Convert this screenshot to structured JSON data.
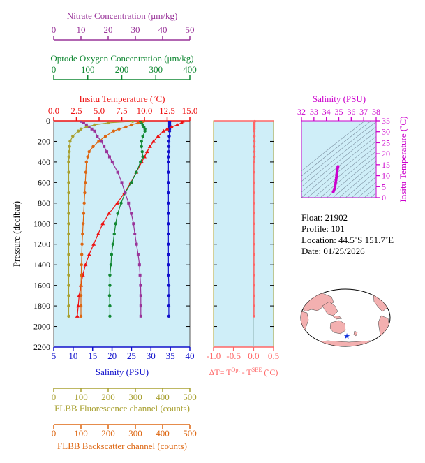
{
  "colors": {
    "nitrate": "#993399",
    "oxygen": "#118833",
    "temperature": "#ee1111",
    "salinity": "#1111cc",
    "fluorescence": "#a8a030",
    "backscatter": "#dd6611",
    "deltaT": "#ff6666",
    "salinity_ts": "#cc00cc",
    "panel_bg": "#cfeef8"
  },
  "float_info": {
    "float": "Float:  21902",
    "profile": "Profile:  101",
    "location": "Location:  44.5˚S  151.7˚E",
    "date": "Date:  01/25/2026"
  },
  "chart_data": [
    {
      "type": "line",
      "name": "main-profile",
      "ylabel": "Pressure (decibar)",
      "ylim": [
        2200,
        0
      ],
      "yticks": [
        "0",
        "200",
        "400",
        "600",
        "800",
        "1000",
        "1200",
        "1400",
        "1600",
        "1800",
        "2000",
        "2200"
      ],
      "axes": {
        "nitrate": {
          "label": "Nitrate Concentration (μm/kg)",
          "range": [
            0,
            50
          ],
          "ticks": [
            "0",
            "10",
            "20",
            "30",
            "40",
            "50"
          ]
        },
        "oxygen": {
          "label": "Optode Oxygen Concentration (μm/kg)",
          "range": [
            0,
            400
          ],
          "ticks": [
            "0",
            "100",
            "200",
            "300",
            "400"
          ]
        },
        "temperature": {
          "label": "Insitu Temperature (˚C)",
          "range": [
            0,
            15
          ],
          "ticks": [
            "0.0",
            "2.5",
            "5.0",
            "7.5",
            "10.0",
            "12.5",
            "15.0"
          ]
        },
        "salinity": {
          "label": "Salinity (PSU)",
          "range": [
            5,
            40
          ],
          "ticks": [
            "5",
            "10",
            "15",
            "20",
            "25",
            "30",
            "35",
            "40"
          ]
        },
        "fluorescence": {
          "label": "FLBB Fluorescence channel (counts)",
          "range": [
            0,
            500
          ],
          "ticks": [
            "0",
            "100",
            "200",
            "300",
            "400",
            "500"
          ]
        },
        "backscatter": {
          "label": "FLBB Backscatter channel (counts)",
          "range": [
            0,
            500
          ],
          "ticks": [
            "0",
            "100",
            "200",
            "300",
            "400",
            "500"
          ]
        }
      },
      "series": [
        {
          "key": "salinity",
          "marker": "circle",
          "pressure": [
            5,
            20,
            40,
            60,
            80,
            100,
            150,
            200,
            250,
            300,
            350,
            400,
            500,
            600,
            700,
            800,
            900,
            1000,
            1100,
            1200,
            1300,
            1400,
            1500,
            1600,
            1700,
            1800,
            1900
          ],
          "values": [
            34.8,
            34.8,
            34.8,
            34.8,
            34.8,
            34.8,
            34.7,
            34.6,
            34.6,
            34.6,
            34.5,
            34.5,
            34.5,
            34.5,
            34.5,
            34.5,
            34.5,
            34.5,
            34.5,
            34.5,
            34.5,
            34.5,
            34.5,
            34.6,
            34.6,
            34.6,
            34.6
          ]
        },
        {
          "key": "temperature",
          "marker": "triangle",
          "pressure": [
            5,
            20,
            40,
            60,
            80,
            100,
            150,
            200,
            250,
            300,
            350,
            400,
            500,
            600,
            700,
            800,
            900,
            1000,
            1100,
            1200,
            1300,
            1400,
            1500,
            1600,
            1700,
            1800,
            1900
          ],
          "values": [
            14.2,
            14.1,
            13.6,
            13.0,
            12.5,
            12.1,
            11.5,
            11.0,
            10.6,
            10.3,
            10.0,
            9.7,
            9.1,
            8.5,
            7.8,
            7.0,
            6.1,
            5.4,
            4.9,
            4.4,
            3.9,
            3.5,
            3.2,
            3.0,
            2.8,
            2.7,
            2.6
          ]
        },
        {
          "key": "oxygen",
          "marker": "circle",
          "pressure": [
            5,
            20,
            40,
            60,
            80,
            100,
            150,
            200,
            250,
            300,
            350,
            400,
            500,
            600,
            700,
            800,
            900,
            1000,
            1100,
            1200,
            1300,
            1400,
            1500,
            1600,
            1700,
            1800,
            1900
          ],
          "values": [
            255,
            258,
            262,
            265,
            268,
            268,
            262,
            258,
            258,
            260,
            262,
            255,
            243,
            228,
            210,
            198,
            188,
            182,
            178,
            174,
            170,
            168,
            165,
            165,
            164,
            165,
            165
          ]
        },
        {
          "key": "nitrate",
          "marker": "square",
          "pressure": [
            5,
            20,
            40,
            60,
            80,
            100,
            150,
            200,
            250,
            300,
            350,
            400,
            500,
            600,
            700,
            800,
            900,
            1000,
            1100,
            1200,
            1300,
            1400,
            1500,
            1600,
            1700,
            1800,
            1900
          ],
          "values": [
            10.0,
            11.0,
            12.0,
            13.0,
            14.0,
            15.0,
            16.0,
            17.5,
            18.5,
            19.5,
            20.5,
            21.5,
            23.5,
            25.0,
            26.2,
            27.5,
            28.5,
            29.3,
            29.8,
            30.4,
            31.0,
            31.5,
            31.7,
            31.9,
            32.0,
            32.0,
            32.0
          ]
        },
        {
          "key": "fluorescence",
          "marker": "circle",
          "pressure": [
            5,
            20,
            40,
            60,
            80,
            100,
            150,
            200,
            250,
            300,
            350,
            400,
            500,
            600,
            700,
            800,
            900,
            1000,
            1100,
            1200,
            1300,
            1400,
            1500,
            1600,
            1700,
            1800,
            1900
          ],
          "values": [
            290,
            200,
            150,
            120,
            100,
            90,
            70,
            60,
            58,
            57,
            56,
            55,
            55,
            55,
            55,
            55,
            55,
            55,
            55,
            55,
            55,
            55,
            55,
            55,
            55,
            55,
            55
          ]
        },
        {
          "key": "backscatter",
          "marker": "circle",
          "pressure": [
            5,
            20,
            40,
            60,
            80,
            100,
            150,
            200,
            250,
            300,
            350,
            400,
            500,
            600,
            700,
            800,
            900,
            1000,
            1100,
            1200,
            1300,
            1400,
            1500,
            1600,
            1700,
            1800,
            1900
          ],
          "values": [
            330,
            310,
            285,
            265,
            240,
            220,
            190,
            165,
            145,
            130,
            125,
            120,
            118,
            116,
            114,
            112,
            110,
            108,
            106,
            104,
            103,
            102,
            101,
            100,
            100,
            100,
            100
          ]
        }
      ]
    },
    {
      "type": "line",
      "name": "delta-t",
      "xlabel": "ΔT= T",
      "xlabel_sup1": "Opt",
      "xlabel_mid": " - T",
      "xlabel_sup2": "SBE",
      "xlabel_end": " (˚C)",
      "xlim": [
        -1.0,
        0.5
      ],
      "xticks": [
        "-1.0",
        "-0.5",
        "0.0",
        "0.5"
      ],
      "ylim": [
        2200,
        0
      ],
      "series": [
        {
          "name": "deltaT",
          "pressure": [
            5,
            20,
            40,
            60,
            80,
            100,
            150,
            200,
            250,
            300,
            350,
            400,
            500,
            600,
            700,
            800,
            900,
            1000,
            1100,
            1200,
            1300,
            1400,
            1500,
            1600,
            1700,
            1800,
            1900
          ],
          "values": [
            0.03,
            0.02,
            0.02,
            0.02,
            0.02,
            0.02,
            0.02,
            0.02,
            0.02,
            0.02,
            0.02,
            0.01,
            0.01,
            0.01,
            0.01,
            0.01,
            0.01,
            0.01,
            0.01,
            0.01,
            0.01,
            0.01,
            0.01,
            0.01,
            0.01,
            0.01,
            0.01
          ]
        }
      ]
    },
    {
      "type": "scatter",
      "name": "ts-diagram",
      "xlabel": "Salinity (PSU)",
      "ylabel": "Insitu Temperature (˚C)",
      "xlim": [
        32,
        38
      ],
      "ylim": [
        0,
        35
      ],
      "xticks": [
        "32",
        "33",
        "34",
        "35",
        "36",
        "37",
        "38"
      ],
      "yticks": [
        "0",
        "5",
        "10",
        "15",
        "20",
        "25",
        "30",
        "35"
      ],
      "series": [
        {
          "name": "ts",
          "salinity": [
            34.55,
            34.6,
            34.65,
            34.7,
            34.72,
            34.75,
            34.78,
            34.8,
            34.82,
            34.84,
            34.86,
            34.88,
            34.9,
            34.92,
            34.93,
            34.94
          ],
          "temperature": [
            2.6,
            3.2,
            4.0,
            5.0,
            6.0,
            7.0,
            8.0,
            9.0,
            10.0,
            11.0,
            11.8,
            12.5,
            13.2,
            13.8,
            14.1,
            14.2
          ]
        }
      ]
    }
  ]
}
